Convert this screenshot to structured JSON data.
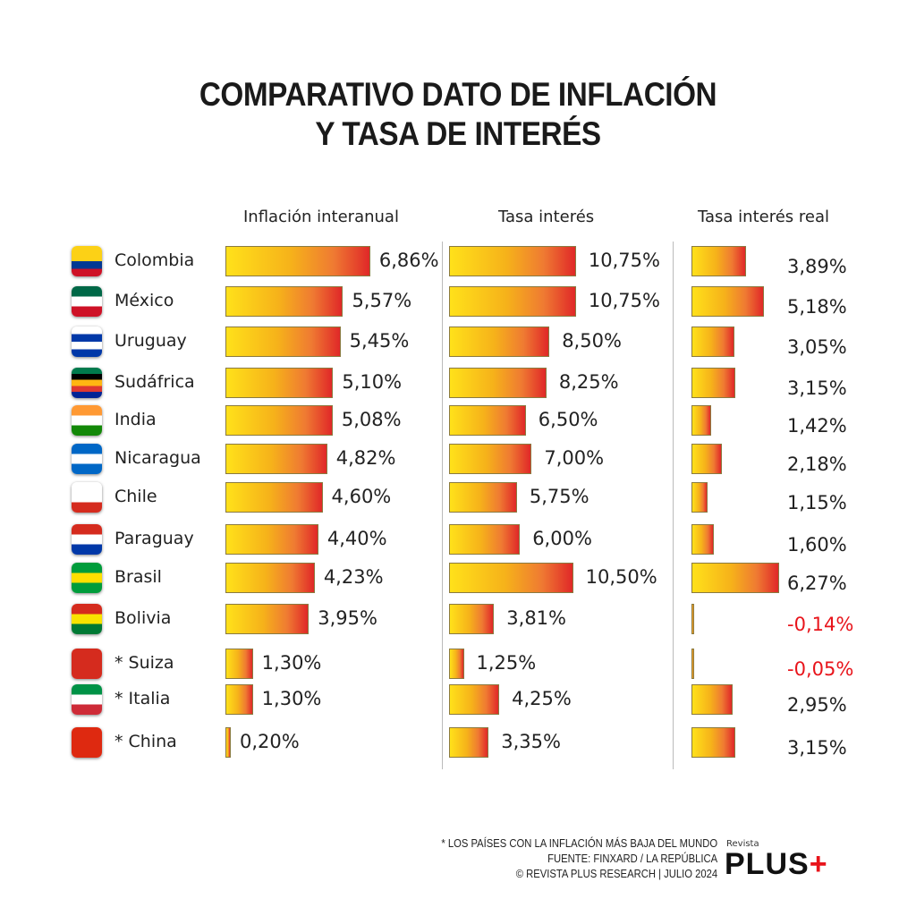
{
  "chart_data": {
    "type": "bar",
    "title": "COMPARATIVO DATO DE INFLACIÓN Y TASA DE INTERÉS",
    "title_lines": [
      "COMPARATIVO DATO DE INFLACIÓN",
      "Y TASA DE INTERÉS"
    ],
    "categories": [
      "Colombia",
      "México",
      "Uruguay",
      "Sudáfrica",
      "India",
      "Nicaragua",
      "Chile",
      "Paraguay",
      "Brasil",
      "Bolivia",
      "* Suiza",
      "* Italia",
      "* China"
    ],
    "series": [
      {
        "name": "Inflación interanual",
        "values": [
          6.86,
          5.57,
          5.45,
          5.1,
          5.08,
          4.82,
          4.6,
          4.4,
          4.23,
          3.95,
          1.3,
          1.3,
          0.2
        ],
        "labels": [
          "6,86%",
          "5,57%",
          "5,45%",
          "5,10%",
          "5,08%",
          "4,82%",
          "4,60%",
          "4,40%",
          "4,23%",
          "3,95%",
          "1,30%",
          "1,30%",
          "0,20%"
        ]
      },
      {
        "name": "Tasa interés",
        "values": [
          10.75,
          10.75,
          8.5,
          8.25,
          6.5,
          7.0,
          5.75,
          6.0,
          10.5,
          3.81,
          1.25,
          4.25,
          3.35
        ],
        "labels": [
          "10,75%",
          "10,75%",
          "8,50%",
          "8,25%",
          "6,50%",
          "7,00%",
          "5,75%",
          "6,00%",
          "10,50%",
          "3,81%",
          "1,25%",
          "4,25%",
          "3,35%"
        ]
      },
      {
        "name": "Tasa interés real",
        "values": [
          3.89,
          5.18,
          3.05,
          3.15,
          1.42,
          2.18,
          1.15,
          1.6,
          6.27,
          -0.14,
          -0.05,
          2.95,
          3.15
        ],
        "labels": [
          "3,89%",
          "5,18%",
          "3,05%",
          "3,15%",
          "1,42%",
          "2,18%",
          "1,15%",
          "1,60%",
          "6,27%",
          "-0,14%",
          "-0,05%",
          "2,95%",
          "3,15%"
        ]
      }
    ],
    "flags": [
      [
        "#fcd116",
        "#fcd116",
        "#003893",
        "#ce1126"
      ],
      [
        "#006847",
        "#ffffff",
        "#ce1126"
      ],
      [
        "#ffffff",
        "#0038a8",
        "#ffffff",
        "#0038a8"
      ],
      [
        "#007a4d",
        "#000000",
        "#ffb612",
        "#de3831",
        "#002395"
      ],
      [
        "#ff9933",
        "#ffffff",
        "#138808"
      ],
      [
        "#0067c6",
        "#ffffff",
        "#0067c6"
      ],
      [
        "#ffffff",
        "#ffffff",
        "#d52b1e"
      ],
      [
        "#d52b1e",
        "#ffffff",
        "#0038a8"
      ],
      [
        "#009c3b",
        "#ffdf00",
        "#009c3b"
      ],
      [
        "#d52b1e",
        "#f9e300",
        "#007934"
      ],
      [
        "#d52b1e",
        "#d52b1e",
        "#d52b1e"
      ],
      [
        "#009246",
        "#ffffff",
        "#ce2b37"
      ],
      [
        "#de2910",
        "#de2910",
        "#de2910"
      ]
    ],
    "negative_color": "#e8141b"
  },
  "footer": {
    "note": "* LOS PAÍSES CON LA INFLACIÓN MÁS BAJA DEL MUNDO",
    "source": "FUENTE: FINXARD / LA REPÚBLICA",
    "credit": "© REVISTA PLUS RESEARCH | JULIO 2024"
  },
  "logo": {
    "small": "Revista",
    "main": "PLUS",
    "plus": "+"
  }
}
